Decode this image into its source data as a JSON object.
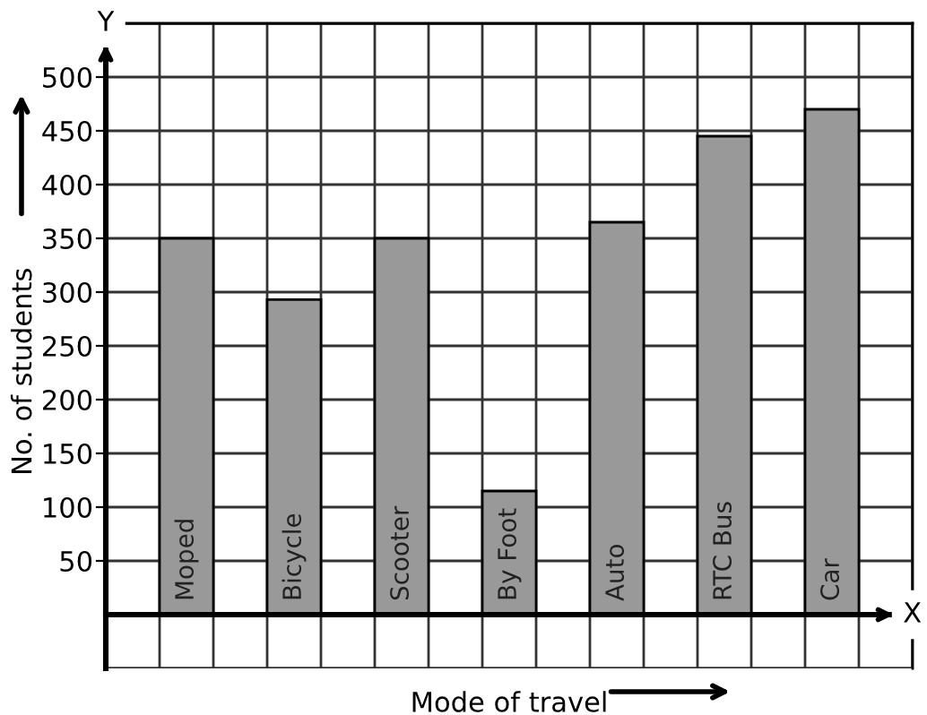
{
  "chart_data": {
    "type": "bar",
    "xlabel": "Mode of travel",
    "ylabel": "No. of students",
    "categories": [
      "Moped",
      "Bicycle",
      "Scooter",
      "By Foot",
      "Auto",
      "RTC Bus",
      "Car"
    ],
    "values": [
      350,
      293,
      350,
      115,
      365,
      445,
      470
    ],
    "color": "#999999",
    "ylim": [
      -50,
      550
    ],
    "yticks": [
      50,
      100,
      150,
      200,
      250,
      300,
      350,
      400,
      450,
      500
    ],
    "grid": true,
    "annotations": [
      "Y",
      "X"
    ]
  }
}
